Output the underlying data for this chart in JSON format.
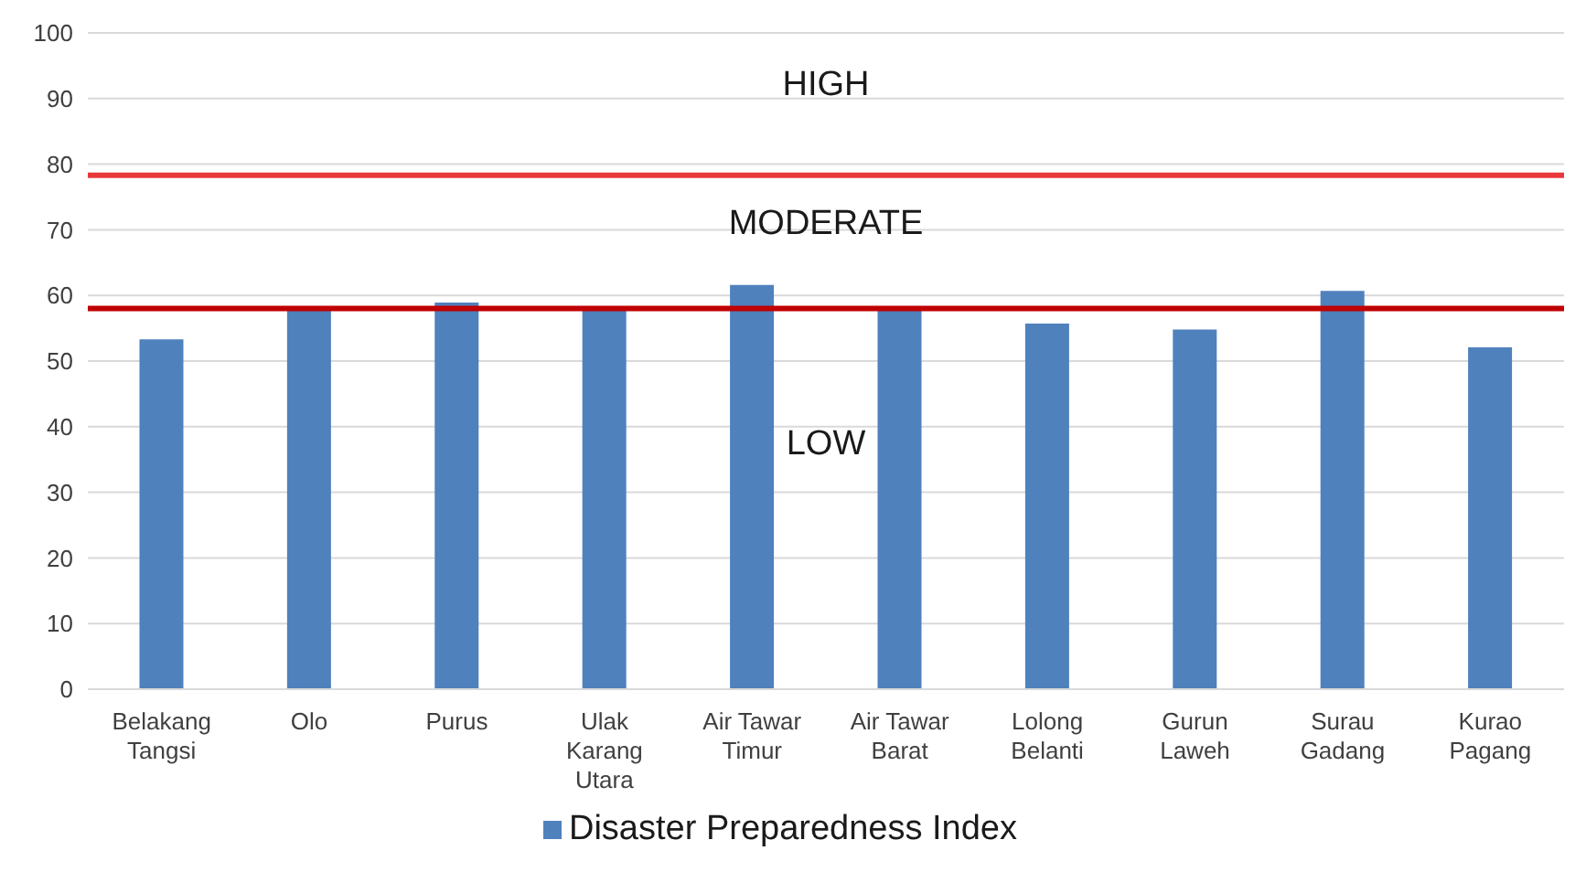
{
  "chart_data": {
    "type": "bar",
    "categories": [
      "Belakang Tangsi",
      "Olo",
      "Purus",
      "Ulak Karang Utara",
      "Air Tawar Timur",
      "Air Tawar Barat",
      "Lolong Belanti",
      "Gurun Laweh",
      "Surau Gadang",
      "Kurao Pagang"
    ],
    "series": [
      {
        "name": "Disaster Preparedness Index",
        "color": "#4f81bd",
        "values": [
          53.3,
          58,
          58.9,
          58,
          61.6,
          58,
          55.7,
          54.8,
          60.7,
          52.1
        ]
      }
    ],
    "ylim": [
      0,
      100
    ],
    "yticks": [
      0,
      10,
      20,
      30,
      40,
      50,
      60,
      70,
      80,
      90,
      100
    ],
    "grid": "y",
    "legend": "bottom",
    "ref_lines": [
      {
        "axis": "y",
        "value": 78.3,
        "color": "#e8383a"
      },
      {
        "axis": "y",
        "value": 58,
        "color": "#c00000"
      }
    ],
    "annotations": [
      "HIGH",
      "MODERATE",
      "LOW"
    ]
  }
}
